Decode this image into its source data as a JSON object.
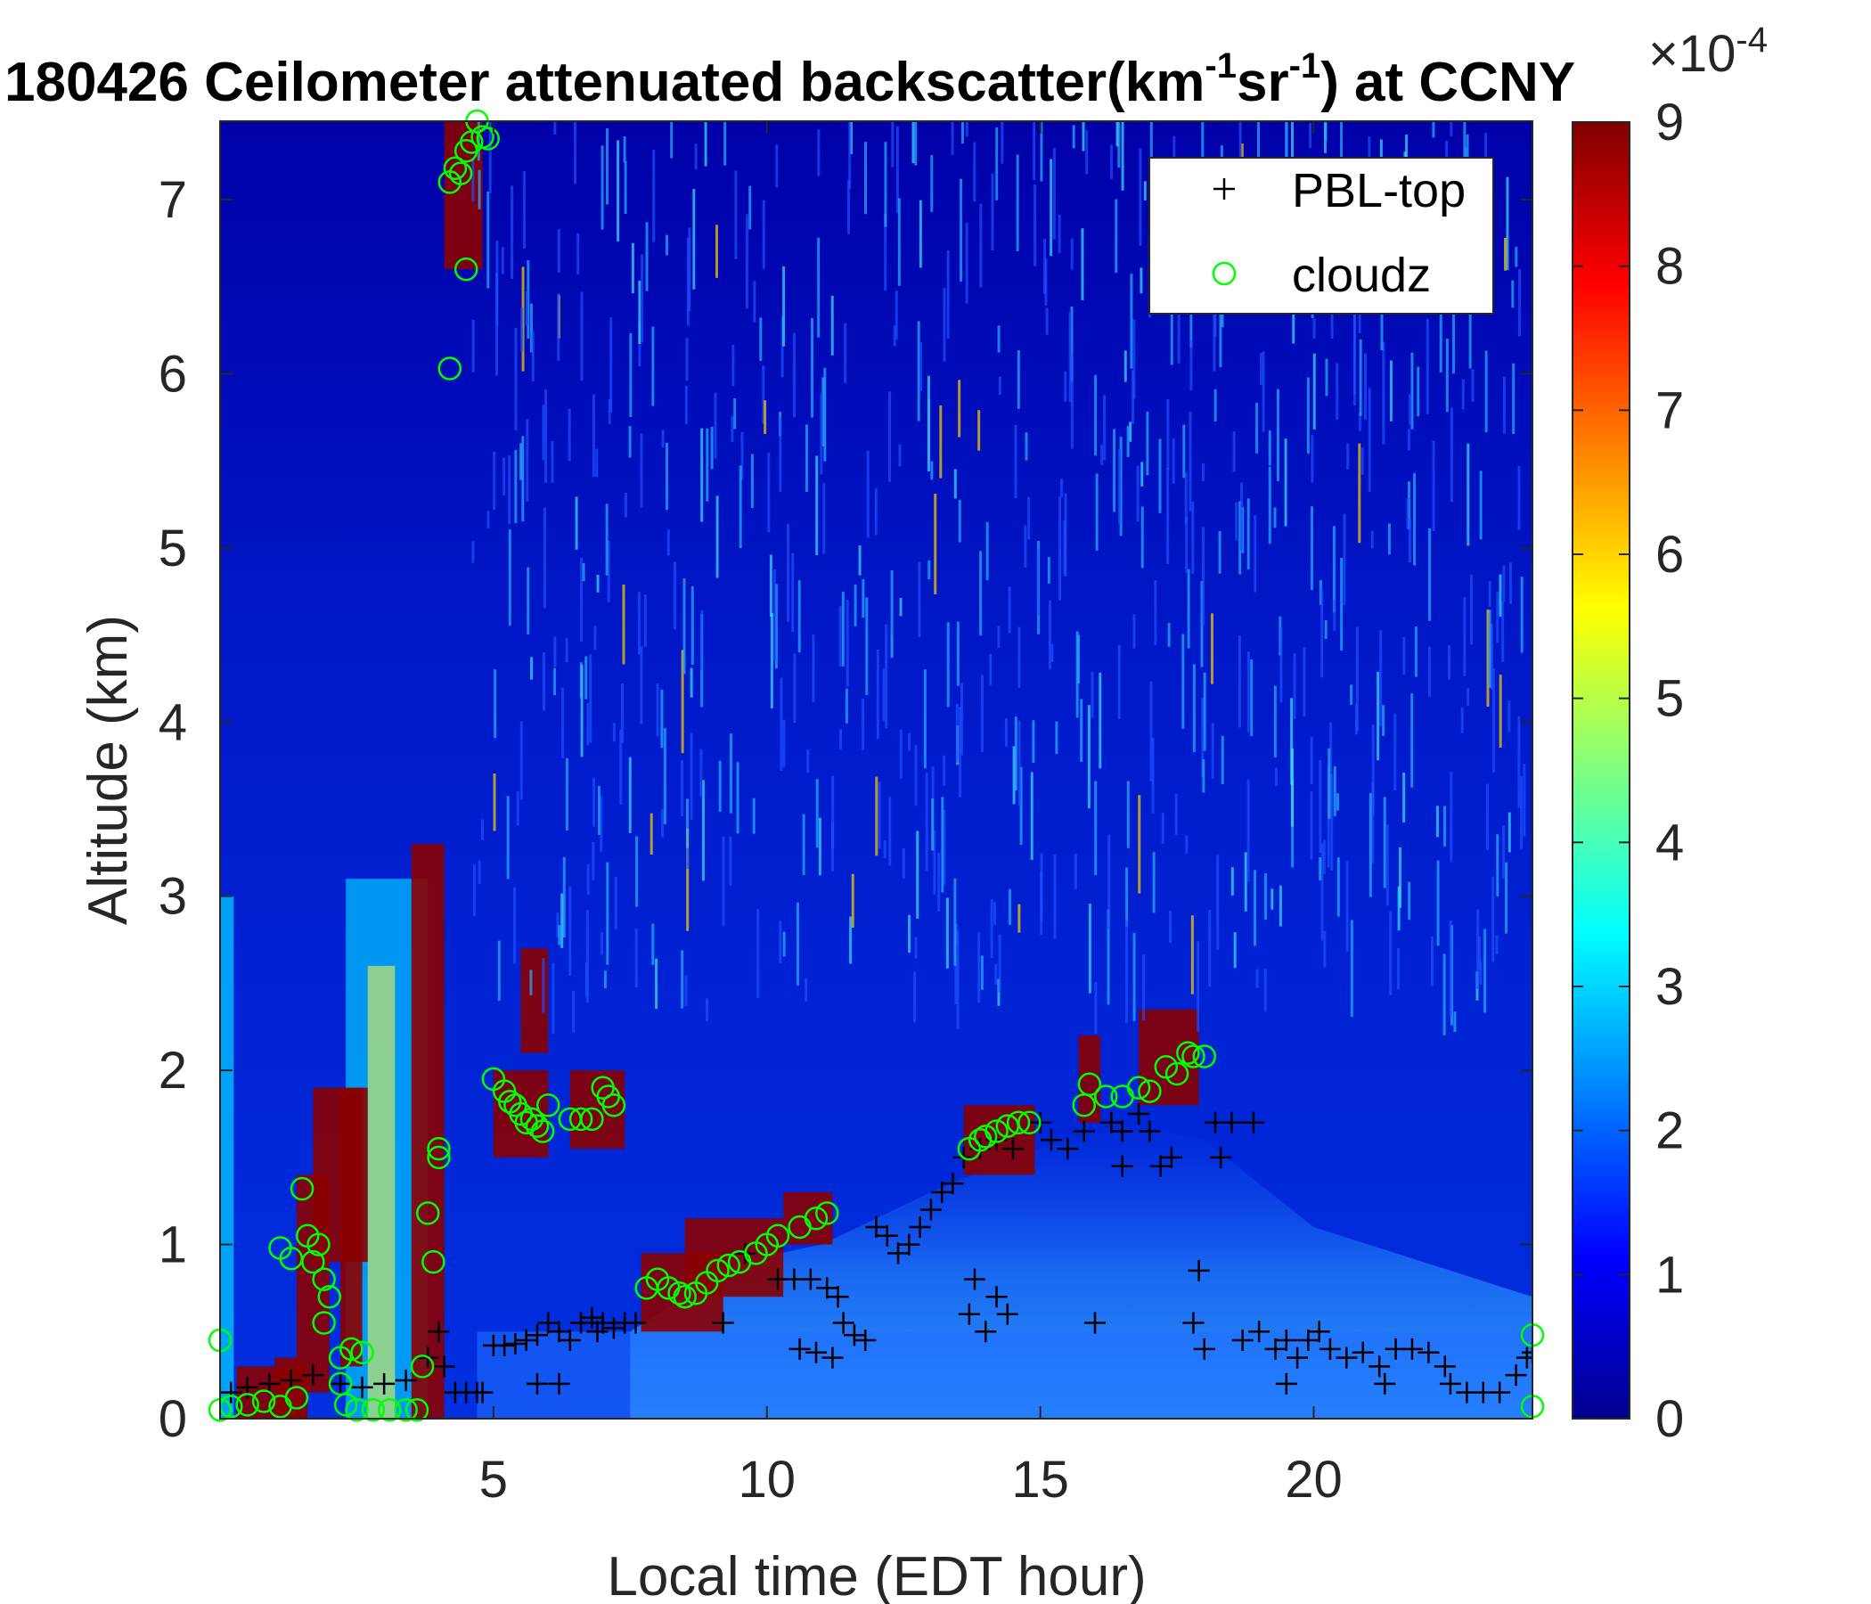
{
  "chart_data": {
    "type": "heatmap",
    "title": "180426 Ceilometer attenuated backscatter(km⁻¹sr⁻¹) at CCNY",
    "title_parts": {
      "main": "180426 Ceilometer attenuated backscatter(km",
      "sup1": "-1",
      "mid": "sr",
      "sup2": "-1",
      "end": ") at CCNY"
    },
    "xlabel": "Local time (EDT hour)",
    "ylabel": "Altitude (km)",
    "xlim": [
      0,
      24
    ],
    "ylim": [
      0,
      7.45
    ],
    "xticks": [
      5,
      10,
      15,
      20
    ],
    "yticks": [
      0,
      1,
      2,
      3,
      4,
      5,
      6,
      7
    ],
    "grid": false,
    "colorbar": {
      "colormap": "jet",
      "range": [
        0,
        9
      ],
      "ticks": [
        0,
        1,
        2,
        3,
        4,
        5,
        6,
        7,
        8,
        9
      ],
      "exponent_label": "×10⁻⁴",
      "exponent_parts": {
        "base": "×10",
        "exp": "-4"
      }
    },
    "legend": {
      "placement": "top-right",
      "entries": [
        {
          "name": "PBL-top",
          "marker": "+",
          "color": "#000000"
        },
        {
          "name": "cloudz",
          "marker": "o",
          "color": "#00ff00"
        }
      ]
    },
    "series": [
      {
        "name": "PBL-top",
        "marker": "+",
        "color": "#000000",
        "points": [
          [
            0.2,
            0.15
          ],
          [
            0.5,
            0.18
          ],
          [
            0.9,
            0.2
          ],
          [
            1.3,
            0.22
          ],
          [
            1.7,
            0.25
          ],
          [
            2.2,
            0.2
          ],
          [
            2.6,
            0.18
          ],
          [
            3.0,
            0.2
          ],
          [
            3.4,
            0.22
          ],
          [
            3.8,
            0.35
          ],
          [
            4.0,
            0.5
          ],
          [
            4.1,
            0.3
          ],
          [
            4.3,
            0.15
          ],
          [
            4.5,
            0.15
          ],
          [
            4.7,
            0.15
          ],
          [
            4.8,
            0.15
          ],
          [
            5.0,
            0.42
          ],
          [
            5.2,
            0.42
          ],
          [
            5.4,
            0.43
          ],
          [
            5.6,
            0.45
          ],
          [
            5.8,
            0.48
          ],
          [
            6.0,
            0.55
          ],
          [
            6.2,
            0.5
          ],
          [
            6.4,
            0.45
          ],
          [
            6.6,
            0.55
          ],
          [
            6.8,
            0.58
          ],
          [
            7.0,
            0.55
          ],
          [
            7.2,
            0.52
          ],
          [
            7.4,
            0.55
          ],
          [
            7.6,
            0.55
          ],
          [
            6.2,
            0.2
          ],
          [
            5.8,
            0.2
          ],
          [
            6.9,
            0.5
          ],
          [
            9.2,
            0.55
          ],
          [
            9.6,
            0.95
          ],
          [
            10.2,
            0.8
          ],
          [
            10.5,
            0.8
          ],
          [
            10.8,
            0.8
          ],
          [
            11.1,
            0.75
          ],
          [
            11.3,
            0.7
          ],
          [
            11.4,
            0.55
          ],
          [
            11.6,
            0.48
          ],
          [
            11.8,
            0.45
          ],
          [
            10.6,
            0.4
          ],
          [
            10.9,
            0.38
          ],
          [
            11.2,
            0.35
          ],
          [
            12.0,
            1.1
          ],
          [
            12.2,
            1.05
          ],
          [
            12.4,
            0.95
          ],
          [
            12.6,
            1.0
          ],
          [
            12.8,
            1.1
          ],
          [
            13.0,
            1.2
          ],
          [
            13.2,
            1.3
          ],
          [
            13.4,
            1.35
          ],
          [
            13.6,
            1.5
          ],
          [
            13.9,
            1.55
          ],
          [
            14.2,
            1.6
          ],
          [
            14.5,
            1.55
          ],
          [
            13.8,
            0.8
          ],
          [
            14.0,
            0.5
          ],
          [
            14.2,
            0.7
          ],
          [
            14.4,
            0.6
          ],
          [
            13.7,
            0.6
          ],
          [
            15.0,
            1.7
          ],
          [
            15.2,
            1.6
          ],
          [
            15.5,
            1.55
          ],
          [
            15.8,
            1.65
          ],
          [
            16.0,
            0.55
          ],
          [
            16.3,
            1.7
          ],
          [
            16.5,
            1.65
          ],
          [
            16.8,
            1.75
          ],
          [
            17.0,
            1.65
          ],
          [
            16.5,
            1.45
          ],
          [
            17.2,
            1.45
          ],
          [
            17.4,
            1.5
          ],
          [
            17.8,
            0.55
          ],
          [
            17.9,
            0.85
          ],
          [
            18.0,
            0.4
          ],
          [
            18.2,
            1.7
          ],
          [
            18.3,
            1.5
          ],
          [
            18.5,
            1.7
          ],
          [
            18.9,
            1.7
          ],
          [
            18.7,
            0.45
          ],
          [
            19.0,
            0.5
          ],
          [
            19.3,
            0.4
          ],
          [
            19.5,
            0.45
          ],
          [
            19.7,
            0.35
          ],
          [
            19.9,
            0.45
          ],
          [
            20.1,
            0.5
          ],
          [
            20.3,
            0.4
          ],
          [
            20.6,
            0.35
          ],
          [
            20.9,
            0.38
          ],
          [
            21.2,
            0.3
          ],
          [
            21.5,
            0.4
          ],
          [
            21.8,
            0.4
          ],
          [
            22.1,
            0.38
          ],
          [
            22.4,
            0.3
          ],
          [
            19.5,
            0.2
          ],
          [
            21.3,
            0.2
          ],
          [
            22.5,
            0.2
          ],
          [
            22.8,
            0.15
          ],
          [
            23.1,
            0.15
          ],
          [
            23.4,
            0.15
          ],
          [
            23.7,
            0.25
          ],
          [
            23.9,
            0.35
          ],
          [
            24.0,
            0.38
          ]
        ]
      },
      {
        "name": "cloudz",
        "marker": "o",
        "color": "#00ff00",
        "points": [
          [
            0.0,
            0.45
          ],
          [
            0.0,
            0.05
          ],
          [
            0.2,
            0.07
          ],
          [
            0.5,
            0.08
          ],
          [
            0.8,
            0.1
          ],
          [
            1.1,
            0.07
          ],
          [
            1.4,
            0.12
          ],
          [
            1.1,
            0.98
          ],
          [
            1.3,
            0.92
          ],
          [
            1.5,
            1.32
          ],
          [
            1.6,
            1.05
          ],
          [
            1.8,
            1.0
          ],
          [
            1.7,
            0.9
          ],
          [
            1.9,
            0.8
          ],
          [
            2.0,
            0.7
          ],
          [
            1.9,
            0.55
          ],
          [
            2.2,
            0.35
          ],
          [
            2.4,
            0.4
          ],
          [
            2.6,
            0.38
          ],
          [
            2.2,
            0.2
          ],
          [
            2.3,
            0.08
          ],
          [
            2.5,
            0.05
          ],
          [
            2.8,
            0.05
          ],
          [
            3.1,
            0.05
          ],
          [
            3.4,
            0.05
          ],
          [
            3.6,
            0.05
          ],
          [
            3.7,
            0.3
          ],
          [
            3.8,
            1.18
          ],
          [
            3.9,
            0.9
          ],
          [
            4.0,
            1.5
          ],
          [
            4.0,
            1.55
          ],
          [
            4.2,
            7.1
          ],
          [
            4.3,
            7.18
          ],
          [
            4.4,
            7.15
          ],
          [
            4.5,
            7.28
          ],
          [
            4.6,
            7.33
          ],
          [
            4.7,
            7.45
          ],
          [
            4.8,
            7.36
          ],
          [
            4.9,
            7.35
          ],
          [
            4.5,
            6.6
          ],
          [
            4.2,
            6.03
          ],
          [
            5.0,
            1.95
          ],
          [
            5.2,
            1.88
          ],
          [
            5.3,
            1.82
          ],
          [
            5.4,
            1.8
          ],
          [
            5.5,
            1.75
          ],
          [
            5.6,
            1.7
          ],
          [
            5.7,
            1.72
          ],
          [
            5.8,
            1.68
          ],
          [
            5.9,
            1.65
          ],
          [
            6.0,
            1.8
          ],
          [
            6.4,
            1.72
          ],
          [
            6.6,
            1.72
          ],
          [
            6.8,
            1.72
          ],
          [
            7.0,
            1.9
          ],
          [
            7.1,
            1.85
          ],
          [
            7.2,
            1.8
          ],
          [
            7.8,
            0.75
          ],
          [
            8.0,
            0.8
          ],
          [
            8.2,
            0.75
          ],
          [
            8.4,
            0.72
          ],
          [
            8.5,
            0.7
          ],
          [
            8.7,
            0.72
          ],
          [
            8.9,
            0.78
          ],
          [
            9.1,
            0.85
          ],
          [
            9.3,
            0.88
          ],
          [
            9.5,
            0.9
          ],
          [
            9.8,
            0.95
          ],
          [
            10.0,
            1.0
          ],
          [
            10.2,
            1.05
          ],
          [
            10.6,
            1.1
          ],
          [
            10.9,
            1.15
          ],
          [
            11.1,
            1.18
          ],
          [
            13.7,
            1.55
          ],
          [
            13.9,
            1.6
          ],
          [
            14.0,
            1.62
          ],
          [
            14.2,
            1.65
          ],
          [
            14.4,
            1.68
          ],
          [
            14.6,
            1.7
          ],
          [
            14.8,
            1.7
          ],
          [
            15.8,
            1.8
          ],
          [
            15.9,
            1.92
          ],
          [
            16.2,
            1.85
          ],
          [
            16.5,
            1.85
          ],
          [
            16.8,
            1.9
          ],
          [
            17.0,
            1.88
          ],
          [
            17.3,
            2.02
          ],
          [
            17.5,
            1.98
          ],
          [
            17.7,
            2.1
          ],
          [
            17.8,
            2.08
          ],
          [
            18.0,
            2.08
          ],
          [
            24.0,
            0.48
          ],
          [
            24.0,
            0.07
          ]
        ]
      }
    ]
  }
}
